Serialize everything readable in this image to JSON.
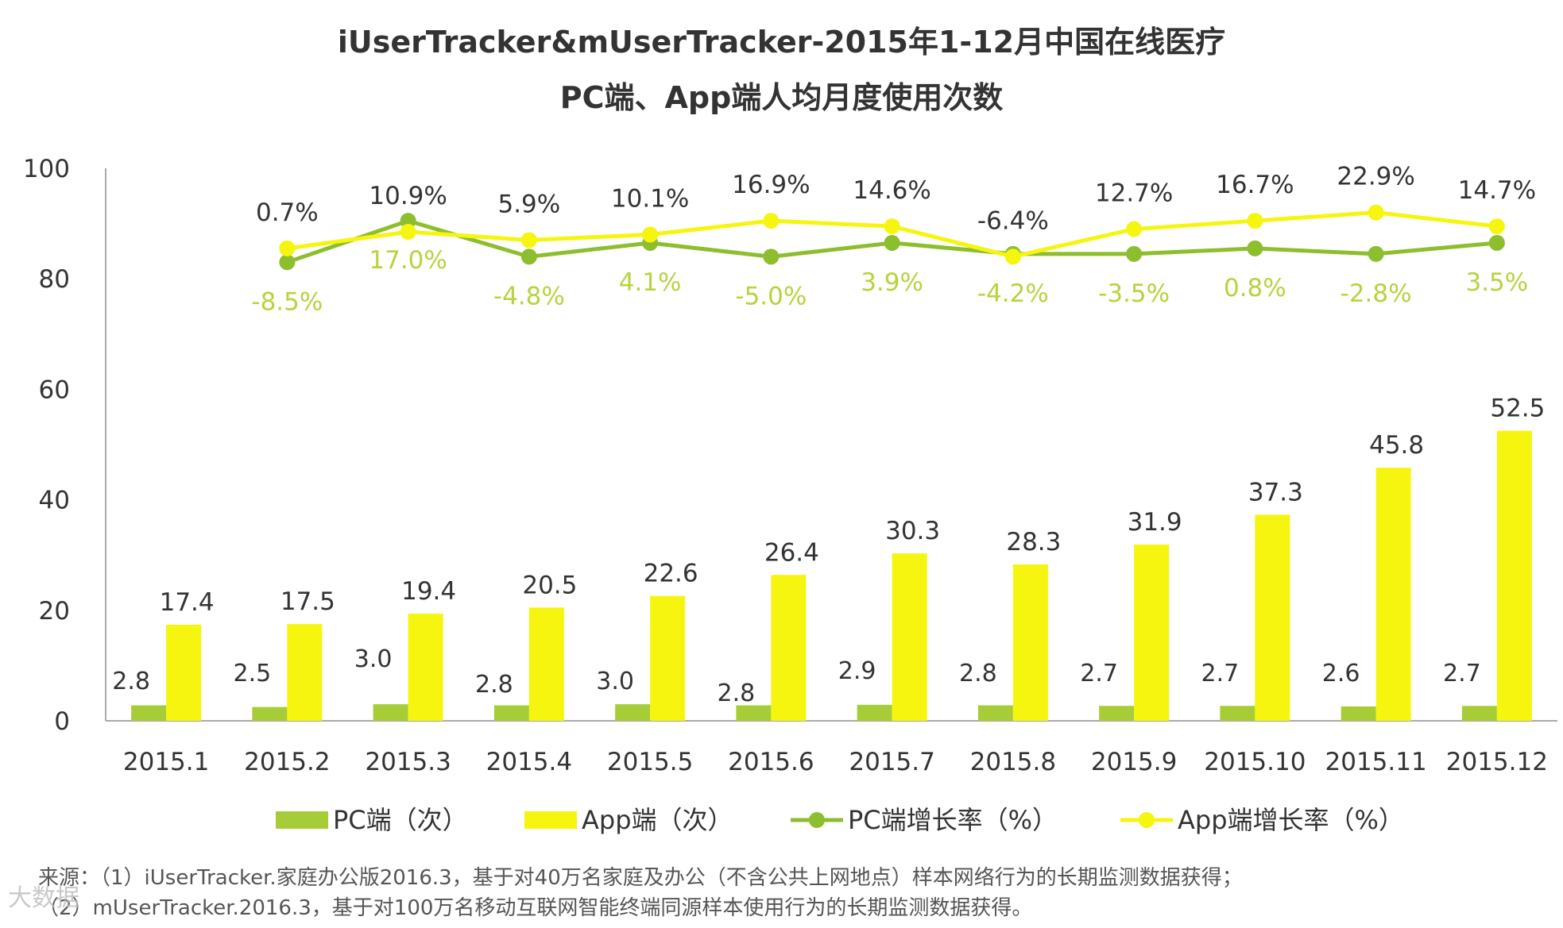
{
  "title_line1": "iUserTracker&mUserTracker-2015年1-12月中国在线医疗",
  "title_line2": "PC端、App端人均月度使用次数",
  "chart_data": {
    "type": "bar",
    "categories": [
      "2015.1",
      "2015.2",
      "2015.3",
      "2015.4",
      "2015.5",
      "2015.6",
      "2015.7",
      "2015.8",
      "2015.9",
      "2015.10",
      "2015.11",
      "2015.12"
    ],
    "ylim": [
      0,
      100
    ],
    "yticks": [
      "0",
      "20",
      "40",
      "60",
      "80",
      "100"
    ],
    "series": [
      {
        "name": "PC端（次）",
        "kind": "bar",
        "color": "#a6cd38",
        "values": [
          2.8,
          2.5,
          3.0,
          2.8,
          3.0,
          2.8,
          2.9,
          2.8,
          2.7,
          2.7,
          2.6,
          2.7
        ],
        "labels": [
          "2.8",
          "2.5",
          "3.0",
          "2.8",
          "3.0",
          "2.8",
          "2.9",
          "2.8",
          "2.7",
          "2.7",
          "2.6",
          "2.7"
        ]
      },
      {
        "name": "App端（次）",
        "kind": "bar",
        "color": "#f5f50f",
        "values": [
          17.4,
          17.5,
          19.4,
          20.5,
          22.6,
          26.4,
          30.3,
          28.3,
          31.9,
          37.3,
          45.8,
          52.5
        ],
        "labels": [
          "17.4",
          "17.5",
          "19.4",
          "20.5",
          "22.6",
          "26.4",
          "30.3",
          "28.3",
          "31.9",
          "37.3",
          "45.8",
          "52.5"
        ]
      },
      {
        "name": "PC端增长率（%）",
        "kind": "line",
        "color": "#8dbe2e",
        "label_color": "#b5d43e",
        "plot_y": [
          83,
          90.5,
          84,
          86.5,
          84,
          86.5,
          84.5,
          84.5,
          85.5,
          84.5,
          86.5
        ],
        "labels": [
          "-8.5%",
          "17.0%",
          "-4.8%",
          "4.1%",
          "-5.0%",
          "3.9%",
          "-4.2%",
          "-3.5%",
          "0.8%",
          "-2.8%",
          "3.5%"
        ]
      },
      {
        "name": "App端增长率（%）",
        "kind": "line",
        "color": "#f5f50f",
        "label_color": "#333333",
        "plot_y": [
          85.5,
          88.5,
          87,
          88,
          90.5,
          89.5,
          84,
          89,
          90.5,
          92,
          89.5
        ],
        "labels": [
          "0.7%",
          "10.9%",
          "5.9%",
          "10.1%",
          "16.9%",
          "14.6%",
          "-6.4%",
          "12.7%",
          "16.7%",
          "22.9%",
          "14.7%"
        ]
      }
    ]
  },
  "legend": [
    "PC端（次）",
    "App端（次）",
    "PC端增长率（%）",
    "App端增长率（%）"
  ],
  "source_line1": "来源：（1）iUserTracker.家庭办公版2016.3，基于对40万名家庭及办公（不含公共上网地点）样本网络行为的长期监测数据获得；",
  "source_line2": "（2）mUserTracker.2016.3，基于对100万名移动互联网智能终端同源样本使用行为的长期监测数据获得。",
  "watermark": "大数据"
}
